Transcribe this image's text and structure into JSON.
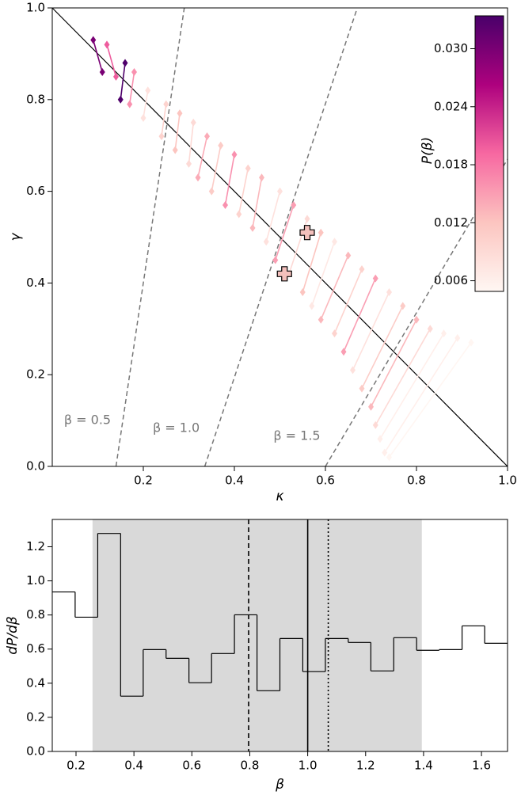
{
  "chart_data": [
    {
      "type": "scatter",
      "x_label": "κ",
      "y_label": "γ",
      "xlim": [
        0,
        1.0
      ],
      "ylim": [
        0,
        1.0
      ],
      "xticks": [
        0.2,
        0.4,
        0.6,
        0.8,
        {
          "value": 1.0,
          "label": "1.0"
        }
      ],
      "yticks": [
        {
          "value": 0.0,
          "label": "0.0"
        },
        0.2,
        0.4,
        0.6,
        0.8,
        {
          "value": 1.0,
          "label": "1.0"
        }
      ],
      "colorbar_label": "P(β)",
      "colormap": [
        "#fff7f3",
        "#fcc5c0",
        "#f768a1",
        "#ae017e",
        "#49006a"
      ],
      "clim": [
        0.0049,
        0.0334
      ],
      "colorbar_ticks": [
        0.006,
        0.012,
        0.018,
        0.024,
        {
          "value": 0.03,
          "label": "0.030"
        }
      ],
      "diagonal": {
        "x": [
          0,
          1.0
        ],
        "y": [
          1.0,
          0
        ]
      },
      "beta_lines": [
        {
          "label": "β = 0.5",
          "x": [
            0.14,
            0.29
          ],
          "y": [
            0,
            1.0
          ]
        },
        {
          "label": "β = 1.0",
          "x": [
            0.335,
            0.67
          ],
          "y": [
            0,
            1.0
          ]
        },
        {
          "label": "β = 1.5",
          "x": [
            0.6,
            1.0
          ],
          "y": [
            0,
            0.67
          ]
        }
      ],
      "pairs": {
        "x1": [
          0.09,
          0.12,
          0.16,
          0.18,
          0.21,
          0.25,
          0.28,
          0.31,
          0.34,
          0.37,
          0.4,
          0.43,
          0.46,
          0.5,
          0.53,
          0.56,
          0.59,
          0.62,
          0.65,
          0.68,
          0.71,
          0.74,
          0.77,
          0.8,
          0.83,
          0.86,
          0.89,
          0.92
        ],
        "y1": [
          0.93,
          0.92,
          0.88,
          0.86,
          0.82,
          0.79,
          0.77,
          0.75,
          0.72,
          0.7,
          0.68,
          0.65,
          0.63,
          0.6,
          0.57,
          0.54,
          0.51,
          0.49,
          0.46,
          0.43,
          0.41,
          0.38,
          0.35,
          0.32,
          0.3,
          0.29,
          0.28,
          0.27
        ],
        "x2": [
          0.11,
          0.14,
          0.15,
          0.17,
          0.2,
          0.24,
          0.27,
          0.3,
          0.32,
          0.35,
          0.38,
          0.41,
          0.44,
          0.47,
          0.49,
          0.52,
          0.55,
          0.57,
          0.59,
          0.62,
          0.64,
          0.66,
          0.68,
          0.7,
          0.71,
          0.72,
          0.73,
          0.74
        ],
        "y2": [
          0.86,
          0.85,
          0.8,
          0.79,
          0.76,
          0.72,
          0.69,
          0.66,
          0.63,
          0.6,
          0.57,
          0.55,
          0.52,
          0.49,
          0.45,
          0.42,
          0.38,
          0.35,
          0.32,
          0.29,
          0.25,
          0.21,
          0.17,
          0.13,
          0.09,
          0.06,
          0.03,
          0.02
        ],
        "p": [
          0.03,
          0.02,
          0.033,
          0.016,
          0.008,
          0.01,
          0.012,
          0.009,
          0.014,
          0.011,
          0.016,
          0.01,
          0.013,
          0.008,
          0.015,
          0.009,
          0.012,
          0.007,
          0.013,
          0.01,
          0.015,
          0.008,
          0.011,
          0.013,
          0.009,
          0.006,
          0.006,
          0.005
        ]
      },
      "crosses": {
        "x": [
          0.56,
          0.51
        ],
        "y": [
          0.51,
          0.42
        ],
        "color": "#f4c0bc"
      }
    },
    {
      "type": "histogram",
      "x_label": "β",
      "y_label": "dP/dβ",
      "xlim": [
        0.118,
        1.69
      ],
      "ylim": [
        0,
        1.36
      ],
      "xticks": [
        0.2,
        0.4,
        0.6,
        0.8,
        {
          "value": 1.0,
          "label": "1.0"
        },
        1.2,
        1.4,
        1.6
      ],
      "yticks": [
        {
          "value": 0.0,
          "label": "0.0"
        },
        0.2,
        0.4,
        0.6,
        0.8,
        {
          "value": 1.0,
          "label": "1.0"
        },
        1.2
      ],
      "bins": [
        0.118,
        0.197,
        0.275,
        0.354,
        0.432,
        0.511,
        0.59,
        0.668,
        0.747,
        0.825,
        0.904,
        0.983,
        1.061,
        1.14,
        1.218,
        1.297,
        1.376,
        1.454,
        1.533,
        1.611,
        1.69
      ],
      "values": [
        0.935,
        0.787,
        1.278,
        0.324,
        0.597,
        0.546,
        0.403,
        0.574,
        0.801,
        0.356,
        0.662,
        0.468,
        0.662,
        0.639,
        0.472,
        0.667,
        0.593,
        0.597,
        0.736,
        0.634
      ],
      "span": [
        0.257,
        1.394
      ],
      "span_color": "#d9d9d9",
      "vlines": [
        {
          "x": 0.796,
          "style": "dashed"
        },
        {
          "x": 1.0,
          "style": "solid"
        },
        {
          "x": 1.071,
          "style": "dotted"
        }
      ]
    }
  ]
}
